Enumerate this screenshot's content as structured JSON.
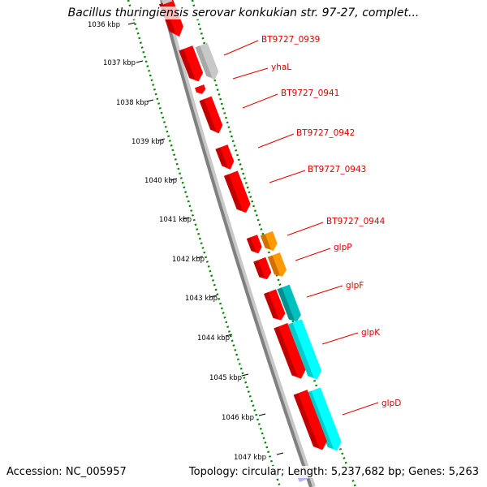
{
  "title": "Bacillus thuringiensis serovar konkukian str. 97-27, complet...",
  "accession": "Accession: NC_005957",
  "topology": "Topology: circular; Length: 5,237,682 bp; Genes: 5,263",
  "ticks": [
    "1036 kbp",
    "1037 kbp",
    "1038 kbp",
    "1039 kbp",
    "1040 kbp",
    "1041 kbp",
    "1042 kbp",
    "1043 kbp",
    "1044 kbp",
    "1045 kbp",
    "1046 kbp",
    "1047 kbp"
  ],
  "gene_labels": [
    "BT9727_0939",
    "yhaL",
    "BT9727_0941",
    "BT9727_0942",
    "BT9727_0943",
    "BT9727_0944",
    "glpP",
    "glpF",
    "glpK",
    "glpD"
  ],
  "colors": {
    "backbone": "#808080",
    "gene_red": "#ff0000",
    "gene_grey": "#c8c8c8",
    "gene_orange": "#ff9900",
    "gene_teal": "#00bfbf",
    "gene_cyan": "#00ffff",
    "ruler_green": "#008000",
    "label_red": "#e00000"
  }
}
